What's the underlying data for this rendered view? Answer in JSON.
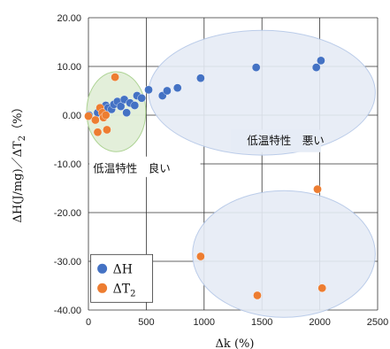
{
  "chart_data": {
    "type": "scatter",
    "xlabel": "Δk (%)",
    "ylabel_main": "ΔH(J/mg)／ΔT",
    "ylabel_sub": "2",
    "ylabel_tail": "（%）",
    "xlim": [
      0,
      2500
    ],
    "ylim": [
      -40,
      20
    ],
    "x_ticks": [
      0,
      500,
      1000,
      1500,
      2000,
      2500
    ],
    "y_ticks": [
      20,
      10,
      0,
      -10,
      -20,
      -30,
      -40
    ],
    "y_tick_labels": [
      "20.00",
      "10.00",
      "0.00",
      "-10.00",
      "-20.00",
      "-30.00",
      "-40.00"
    ],
    "grid": true,
    "legend_position": "bottom-left",
    "series": [
      {
        "name": "ΔH",
        "name_sub": "",
        "color": "#4472C4",
        "points": [
          [
            5,
            0
          ],
          [
            80,
            0.5
          ],
          [
            120,
            1
          ],
          [
            150,
            2
          ],
          [
            170,
            1.5
          ],
          [
            200,
            1.2
          ],
          [
            220,
            2.2
          ],
          [
            250,
            2.8
          ],
          [
            280,
            1.8
          ],
          [
            310,
            3.2
          ],
          [
            330,
            0.5
          ],
          [
            360,
            2.5
          ],
          [
            400,
            2
          ],
          [
            420,
            4
          ],
          [
            460,
            3.5
          ],
          [
            520,
            5.2
          ],
          [
            640,
            4
          ],
          [
            680,
            5
          ],
          [
            770,
            5.6
          ],
          [
            970,
            7.6
          ],
          [
            1450,
            9.8
          ],
          [
            1970,
            9.8
          ],
          [
            2010,
            11.2
          ]
        ]
      },
      {
        "name": "ΔT",
        "name_sub": "2",
        "color": "#ED7D31",
        "points": [
          [
            0,
            -0.2
          ],
          [
            60,
            -1
          ],
          [
            80,
            -3.5
          ],
          [
            100,
            1.5
          ],
          [
            120,
            0.5
          ],
          [
            130,
            -0.5
          ],
          [
            150,
            0
          ],
          [
            160,
            -3
          ],
          [
            230,
            7.8
          ],
          [
            970,
            -29
          ],
          [
            1460,
            -37
          ],
          [
            1980,
            -15.2
          ],
          [
            2020,
            -35.5
          ]
        ]
      }
    ],
    "annotations": [
      {
        "text": "低温特性　良い"
      },
      {
        "text": "低温特性　悪い"
      }
    ],
    "regions": [
      {
        "label": "good",
        "fill": "#E2EFD9",
        "stroke": "#A9D18E"
      },
      {
        "label": "bad-upper",
        "fill": "#E6ECF6",
        "stroke": "#B4C7E7"
      },
      {
        "label": "bad-lower",
        "fill": "#E6ECF6",
        "stroke": "#B4C7E7"
      }
    ]
  }
}
